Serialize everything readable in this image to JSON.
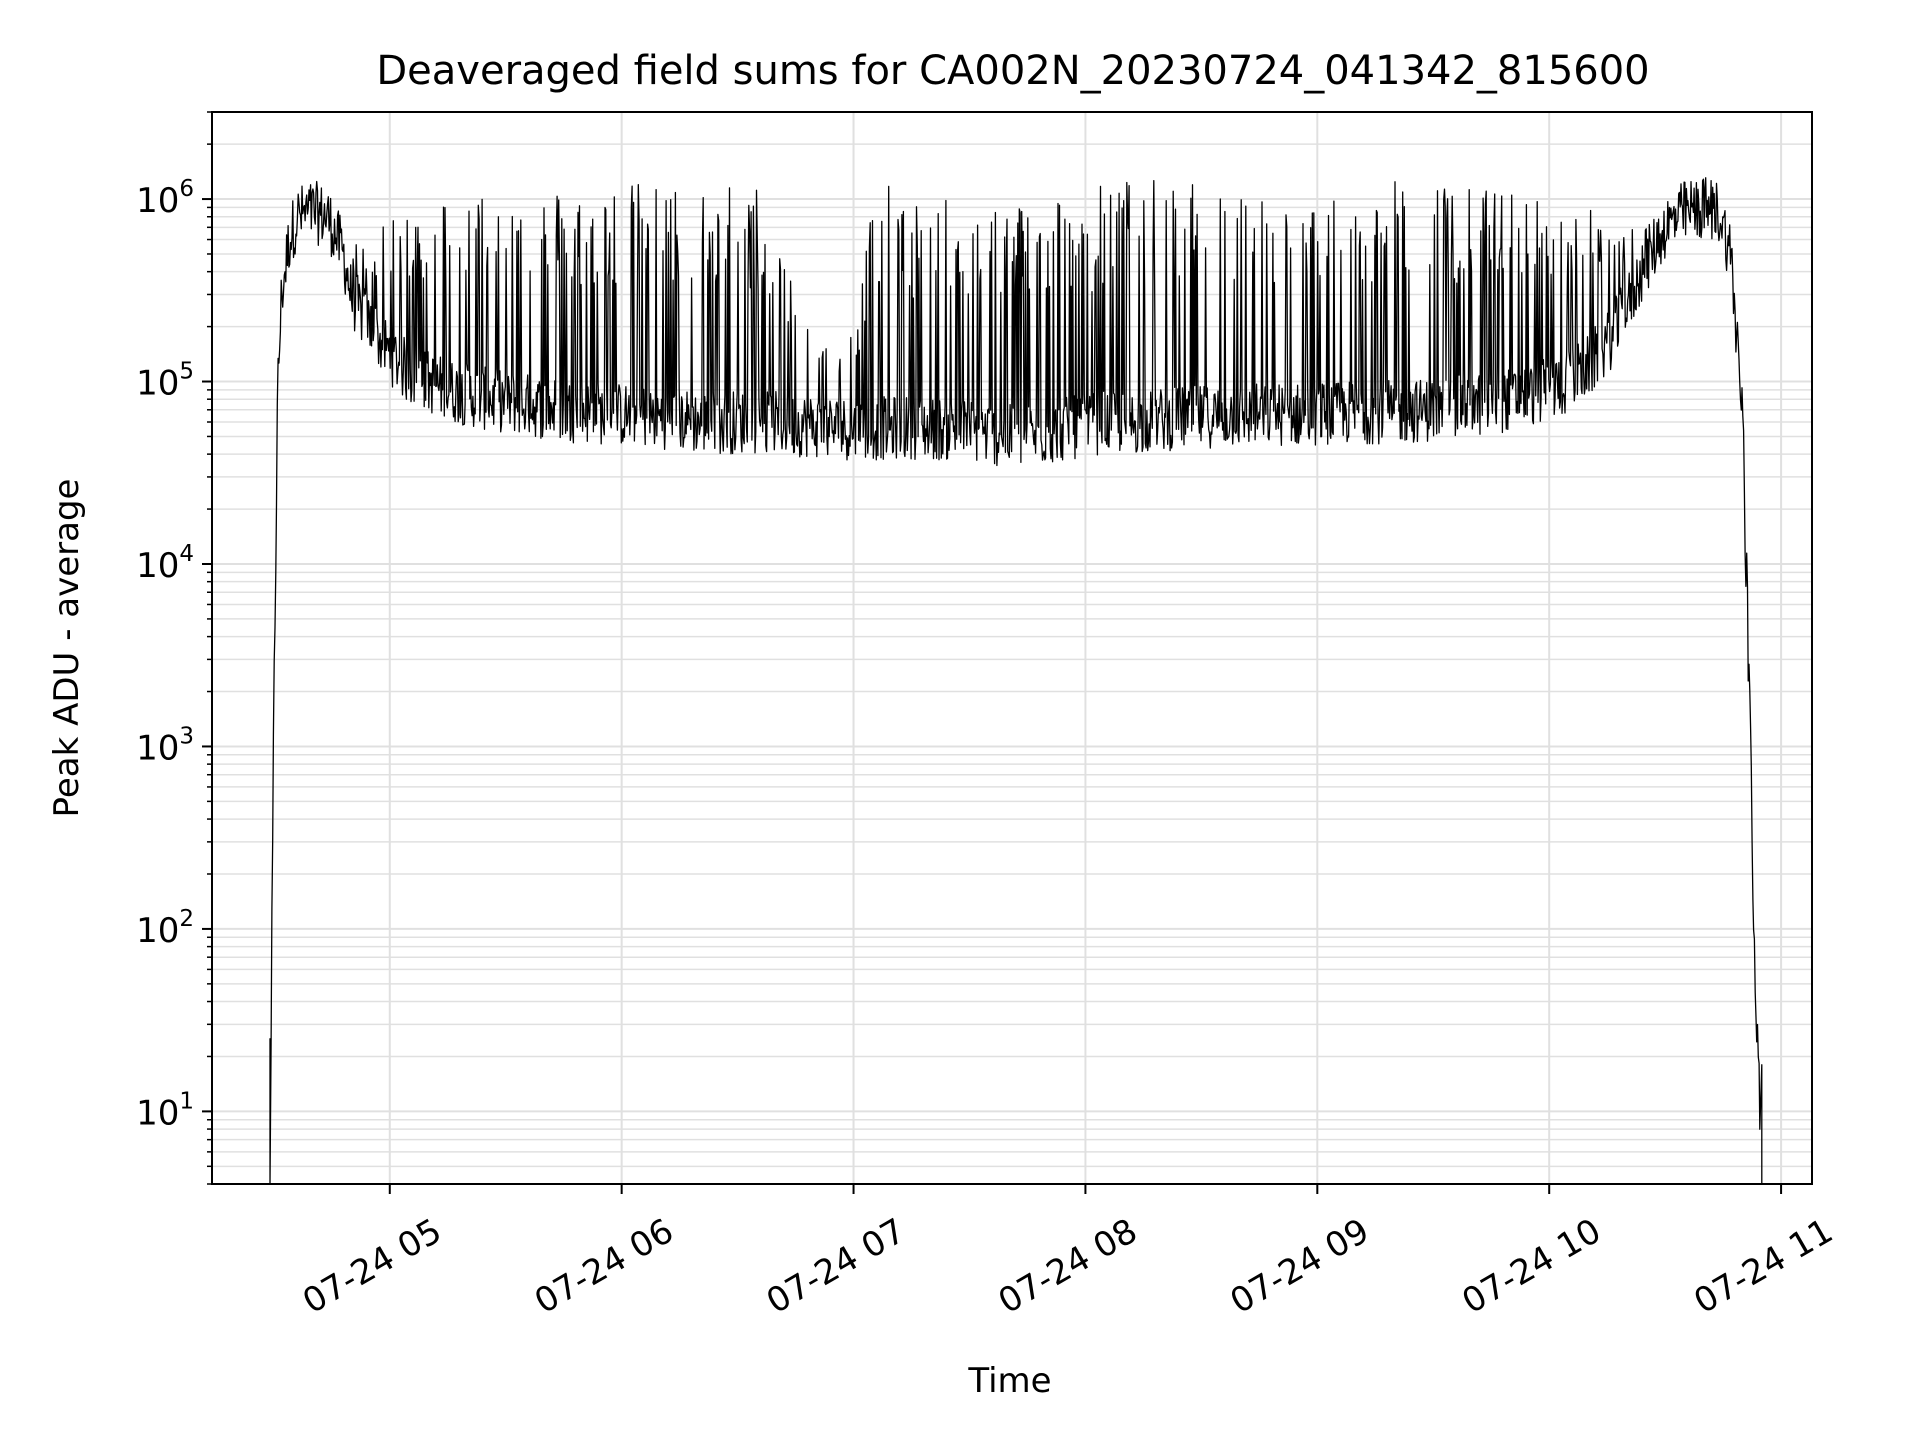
{
  "chart_data": {
    "type": "line",
    "title": "Deaveraged field sums for CA002N_20230724_041342_815600",
    "xlabel": "Time",
    "ylabel": "Peak ADU - average",
    "yscale": "log",
    "xlim": [
      "2023-07-24 04:14",
      "2023-07-24 11:08"
    ],
    "ylim": [
      4,
      3000000
    ],
    "grid": true,
    "colors": {
      "line": "#000000",
      "grid": "#e0e0e0",
      "axes": "#000000"
    },
    "x_ticks": [
      "07-24 05",
      "07-24 06",
      "07-24 07",
      "07-24 08",
      "07-24 09",
      "07-24 10",
      "07-24 11"
    ],
    "y_ticks": [
      {
        "base": "10",
        "exp": "1",
        "value": 10
      },
      {
        "base": "10",
        "exp": "2",
        "value": 100
      },
      {
        "base": "10",
        "exp": "3",
        "value": 1000
      },
      {
        "base": "10",
        "exp": "4",
        "value": 10000
      },
      {
        "base": "10",
        "exp": "5",
        "value": 100000
      },
      {
        "base": "10",
        "exp": "6",
        "value": 1000000
      }
    ],
    "series": [
      {
        "x": [
          "04:29",
          "04:30",
          "04:31",
          "04:32",
          "04:34",
          "04:36",
          "04:40",
          "04:44",
          "04:48",
          "04:50",
          "04:52",
          "04:55",
          "04:58",
          "05:02",
          "05:05",
          "05:10",
          "05:15",
          "05:20",
          "05:25",
          "05:30",
          "05:35",
          "05:40",
          "05:45",
          "05:50",
          "05:55",
          "06:00",
          "06:05",
          "06:10",
          "06:15",
          "06:20",
          "06:25",
          "06:30",
          "06:35",
          "06:40",
          "06:45",
          "06:50",
          "06:55",
          "07:00",
          "07:05",
          "07:10",
          "07:15",
          "07:20",
          "07:25",
          "07:30",
          "07:35",
          "07:40",
          "07:45",
          "07:50",
          "07:55",
          "08:00",
          "08:05",
          "08:10",
          "08:15",
          "08:20",
          "08:25",
          "08:30",
          "08:35",
          "08:40",
          "08:45",
          "08:50",
          "08:55",
          "09:00",
          "09:05",
          "09:10",
          "09:15",
          "09:20",
          "09:25",
          "09:30",
          "09:35",
          "09:40",
          "09:45",
          "09:50",
          "09:55",
          "10:00",
          "10:05",
          "10:10",
          "10:15",
          "10:20",
          "10:25",
          "10:30",
          "10:35",
          "10:40",
          "10:44",
          "10:47",
          "10:50",
          "10:52",
          "10:53",
          "10:54",
          "10:55"
        ],
        "baseline": [
          5,
          1500,
          90000,
          300000,
          600000,
          800000,
          850000,
          800000,
          500000,
          300000,
          250000,
          200000,
          160000,
          130000,
          110000,
          100000,
          90000,
          85000,
          80000,
          78000,
          75000,
          72000,
          70000,
          68000,
          67000,
          66000,
          65000,
          64000,
          62000,
          60000,
          60000,
          60000,
          60000,
          59000,
          58000,
          57000,
          56000,
          55000,
          55000,
          56000,
          56000,
          55000,
          55000,
          54000,
          52000,
          50000,
          50000,
          52000,
          55000,
          57000,
          60000,
          60000,
          60000,
          62000,
          63000,
          64000,
          65000,
          65000,
          66000,
          66000,
          66000,
          67000,
          67000,
          68000,
          68000,
          68000,
          69000,
          70000,
          72000,
          74000,
          76000,
          80000,
          85000,
          90000,
          100000,
          120000,
          160000,
          250000,
          450000,
          700000,
          850000,
          900000,
          850000,
          500000,
          60000,
          1000,
          100,
          20,
          5
        ],
        "peak": [
          5,
          1500,
          90000,
          300000,
          600000,
          800000,
          850000,
          800000,
          600000,
          550000,
          600000,
          650000,
          700000,
          800000,
          900000,
          1000000,
          1100000,
          1100000,
          1200000,
          1200000,
          1200000,
          1150000,
          1150000,
          1200000,
          1200000,
          1200000,
          1250000,
          1200000,
          1200000,
          1200000,
          1300000,
          1300000,
          1200000,
          1000000,
          300000,
          200000,
          200000,
          200000,
          1100000,
          1200000,
          1100000,
          1000000,
          1000000,
          1000000,
          1000000,
          1000000,
          1050000,
          1100000,
          1150000,
          1200000,
          1250000,
          1300000,
          1300000,
          1300000,
          1250000,
          1200000,
          1200000,
          1200000,
          1100000,
          1000000,
          1000000,
          900000,
          1000000,
          1100000,
          1200000,
          1250000,
          1300000,
          1250000,
          1200000,
          1200000,
          1150000,
          1100000,
          1050000,
          1000000,
          1000000,
          900000,
          800000,
          700000,
          700000,
          750000,
          850000,
          950000,
          950000,
          700000,
          100000,
          2000,
          100,
          20,
          5
        ],
        "name": ""
      }
    ]
  }
}
